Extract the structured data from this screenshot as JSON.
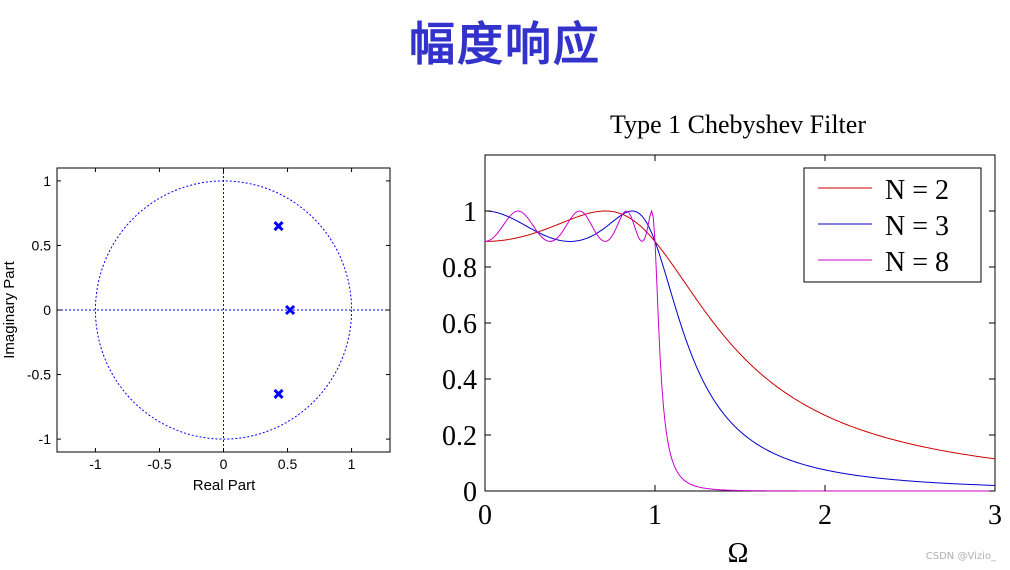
{
  "slide_title": "幅度响应",
  "watermark": "CSDN @Vizio_",
  "colors": {
    "title": "#3333cc",
    "pz": "#0000ff",
    "n2": "#cc0000",
    "n3": "#0000cc",
    "n8": "#cc00cc"
  },
  "chart_data": [
    {
      "type": "scatter",
      "title": "",
      "xlabel": "Real Part",
      "ylabel": "Imaginary Part",
      "xlim": [
        -1.3,
        1.3
      ],
      "ylim": [
        -1.1,
        1.1
      ],
      "xticks": [
        "-1",
        "-0.5",
        "0",
        "0.5",
        "1"
      ],
      "xtick_values": [
        -1,
        -0.5,
        0,
        0.5,
        1
      ],
      "yticks": [
        "1",
        "0.5",
        "0",
        "-0.5",
        "-1"
      ],
      "ytick_values": [
        1,
        0.5,
        0,
        -0.5,
        -1
      ],
      "unit_circle": true,
      "poles": [
        {
          "re": 0.43,
          "im": 0.65
        },
        {
          "re": 0.52,
          "im": 0.0
        },
        {
          "re": 0.43,
          "im": -0.65
        }
      ]
    },
    {
      "type": "line",
      "title": "Type 1 Chebyshev Filter",
      "xlabel": "Ω",
      "ylabel": "",
      "xlim": [
        0,
        3
      ],
      "ylim": [
        0,
        1.2
      ],
      "xticks": [
        "0",
        "1",
        "2",
        "3"
      ],
      "xtick_values": [
        0,
        1,
        2,
        3
      ],
      "yticks": [
        "0",
        "0.2",
        "0.4",
        "0.6",
        "0.8",
        "1"
      ],
      "ytick_values": [
        0,
        0.2,
        0.4,
        0.6,
        0.8,
        1
      ],
      "legend_position": "top-right",
      "ripple": 0.8913,
      "series": [
        {
          "name": "N = 2",
          "order": 2,
          "color": "#cc0000"
        },
        {
          "name": "N = 3",
          "order": 3,
          "color": "#0000cc"
        },
        {
          "name": "N = 8",
          "order": 8,
          "color": "#cc00cc"
        }
      ]
    }
  ]
}
